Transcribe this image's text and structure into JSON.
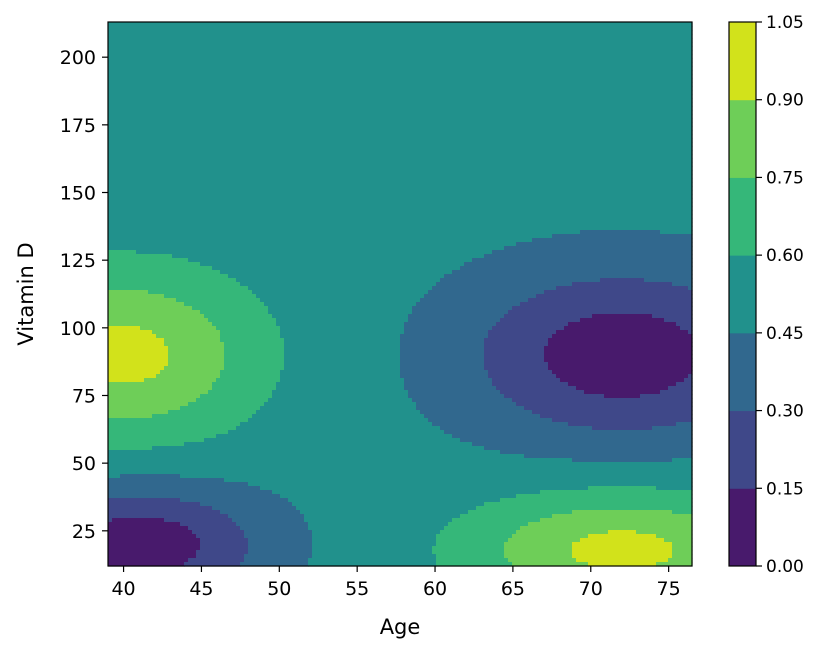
{
  "chart_data": {
    "type": "contourf",
    "title": "",
    "xlabel": "Age",
    "ylabel": "Vitamin D",
    "xlim": [
      39,
      76.5
    ],
    "ylim": [
      12,
      213
    ],
    "x_ticks": [
      40,
      45,
      50,
      55,
      60,
      65,
      70,
      75
    ],
    "y_ticks": [
      25,
      50,
      75,
      100,
      125,
      150,
      175,
      200
    ],
    "colorbar": {
      "levels": [
        0.0,
        0.15,
        0.3,
        0.45,
        0.6,
        0.75,
        0.9,
        1.05
      ],
      "tick_labels": [
        "0.00",
        "0.15",
        "0.30",
        "0.45",
        "0.60",
        "0.75",
        "0.90",
        "1.05"
      ],
      "colors": [
        "#481a6c",
        "#3f4889",
        "#31688e",
        "#21918c",
        "#35b779",
        "#6ece58",
        "#d2e21b"
      ]
    },
    "field": {
      "baseline": 0.5,
      "components": [
        {
          "amplitude": 0.45,
          "age_center": 40,
          "age_scale": 6.0,
          "vitd_center": 90,
          "vitd_scale": 22
        },
        {
          "amplitude": -0.45,
          "age_center": 41,
          "age_scale": 5.5,
          "vitd_center": 20,
          "vitd_scale": 15
        },
        {
          "amplitude": -0.45,
          "age_center": 72,
          "age_scale": 7.0,
          "vitd_center": 90,
          "vitd_scale": 22
        },
        {
          "amplitude": 0.45,
          "age_center": 72,
          "age_scale": 7.0,
          "vitd_center": 18,
          "vitd_scale": 15
        }
      ]
    },
    "grid": false,
    "legend": "none"
  }
}
